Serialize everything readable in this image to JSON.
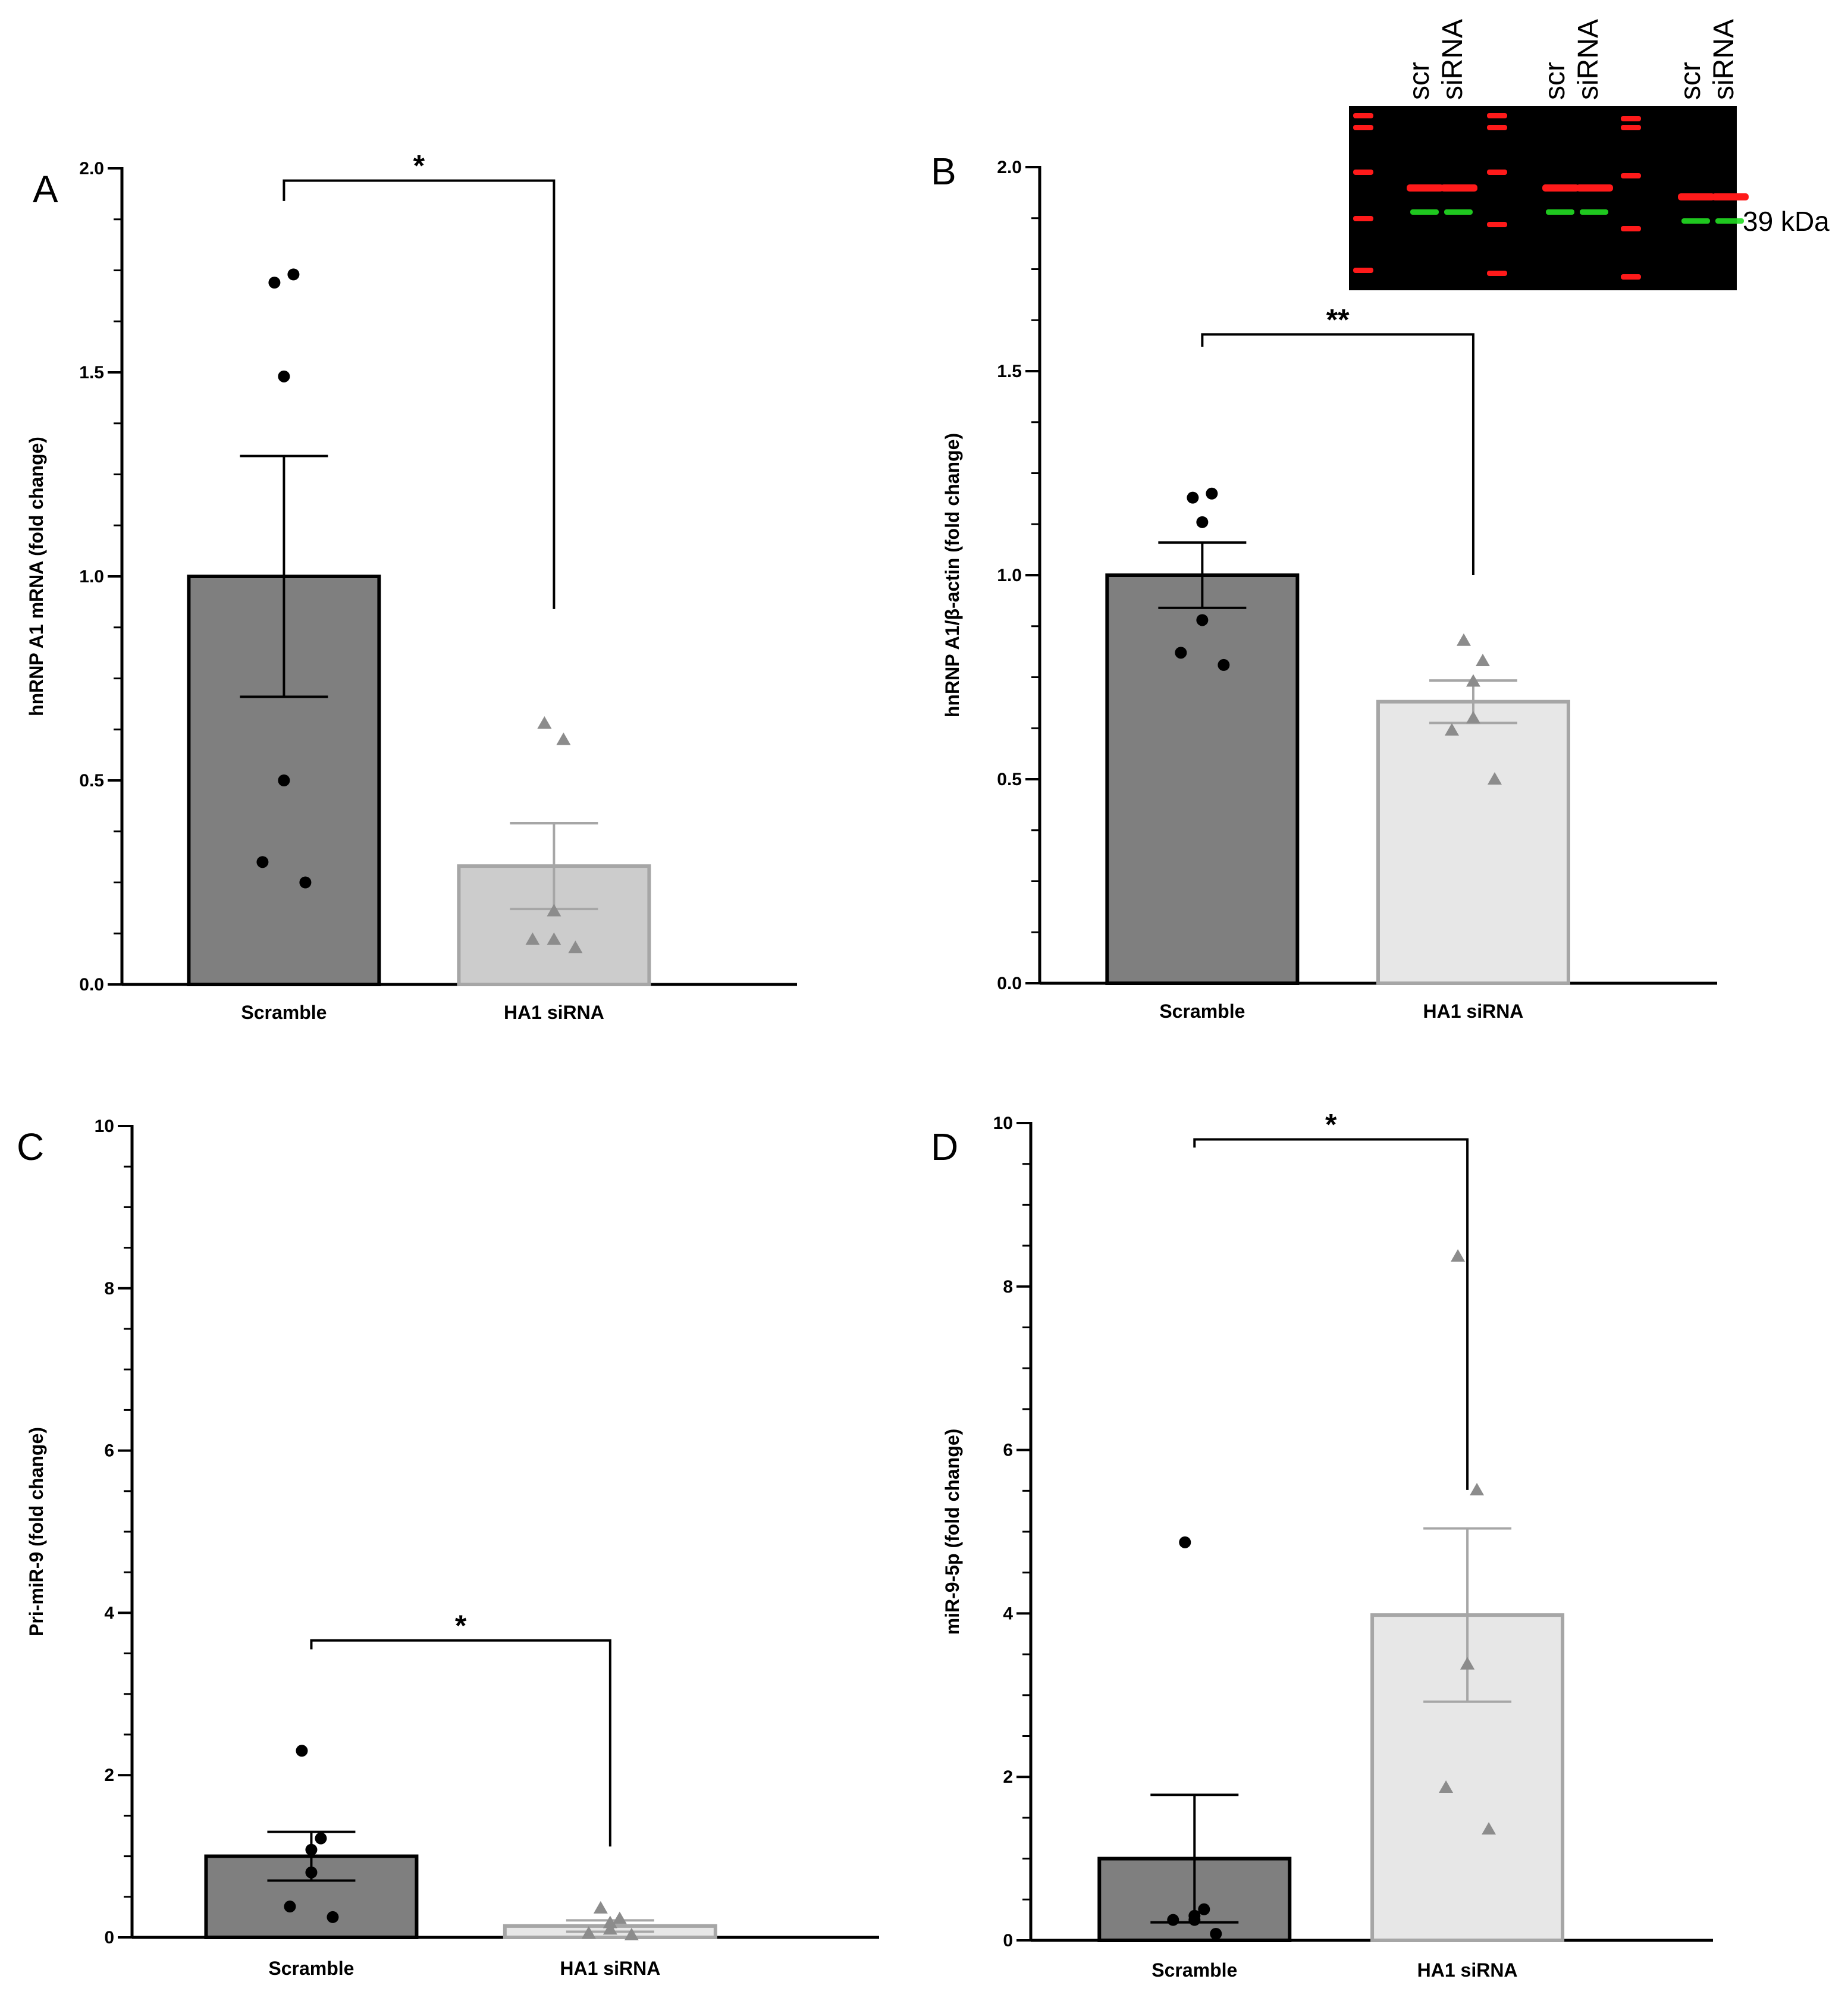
{
  "colors": {
    "scramble_fill": "#7f7f7f",
    "scramble_stroke": "#000000",
    "sirna_fill_A": "#cccccc",
    "sirna_fill": "#e7e7e7",
    "sirna_stroke": "#a6a6a6",
    "scramble_points": "#000000",
    "sirna_points": "#8c8c8c",
    "blot_bg": "#000000",
    "blot_red": "#ff1a1a",
    "blot_green": "#22dd22"
  },
  "blot": {
    "lane_groups": [
      {
        "scr": "scr",
        "sirna": "siRNA"
      },
      {
        "scr": "scr",
        "sirna": "siRNA"
      },
      {
        "scr": "scr",
        "sirna": "siRNA"
      }
    ],
    "marker_label": "39 kDa"
  },
  "chart_data": [
    {
      "panel": "A",
      "type": "bar",
      "ylabel": "hnRNP A1 mRNA (fold change)",
      "ylim": [
        0,
        2.0
      ],
      "yticks": [
        0,
        0.5,
        1.0,
        1.5,
        2.0
      ],
      "ytick_labels": [
        "0.0",
        "0.5",
        "1.0",
        "1.5",
        "2.0"
      ],
      "categories": [
        "Scramble",
        "HA1 siRNA"
      ],
      "values": [
        1.0,
        0.29
      ],
      "sem": [
        0.295,
        0.105
      ],
      "points": [
        [
          1.72,
          1.74,
          1.49,
          0.5,
          0.3,
          0.25
        ],
        [
          0.64,
          0.6,
          0.18,
          0.11,
          0.11,
          0.09
        ]
      ],
      "significance": {
        "label": "*",
        "bracket_y": 1.97,
        "left_drop_to": 1.92,
        "right_drop_to": 0.92
      }
    },
    {
      "panel": "B",
      "type": "bar",
      "ylabel": "hnRNP A1/β-actin (fold change)",
      "ylim": [
        0,
        2.0
      ],
      "yticks": [
        0,
        0.5,
        1.0,
        1.5,
        2.0
      ],
      "ytick_labels": [
        "0.0",
        "0.5",
        "1.0",
        "1.5",
        "2.0"
      ],
      "categories": [
        "Scramble",
        "HA1 siRNA"
      ],
      "values": [
        1.0,
        0.69
      ],
      "sem": [
        0.08,
        0.052
      ],
      "points": [
        [
          1.19,
          1.2,
          1.13,
          0.89,
          0.81,
          0.78
        ],
        [
          0.84,
          0.79,
          0.74,
          0.65,
          0.62,
          0.5
        ]
      ],
      "significance": {
        "label": "**",
        "bracket_y": 1.59,
        "left_drop_to": 1.56,
        "right_drop_to": 1.0
      }
    },
    {
      "panel": "C",
      "type": "bar",
      "ylabel": "Pri-miR-9 (fold change)",
      "ylim": [
        0,
        10
      ],
      "yticks": [
        0,
        2,
        4,
        6,
        8,
        10
      ],
      "ytick_labels": [
        "0",
        "2",
        "4",
        "6",
        "8",
        "10"
      ],
      "categories": [
        "Scramble",
        "HA1 siRNA"
      ],
      "values": [
        1.0,
        0.14
      ],
      "sem": [
        0.3,
        0.07
      ],
      "points": [
        [
          2.3,
          1.22,
          1.08,
          0.8,
          0.38,
          0.25
        ],
        [
          0.36,
          0.23,
          0.18,
          0.1,
          0.05,
          0.03
        ]
      ],
      "significance": {
        "label": "*",
        "bracket_y": 3.66,
        "left_drop_to": 3.55,
        "right_drop_to": 1.12
      }
    },
    {
      "panel": "D",
      "type": "bar",
      "ylabel": "miR-9-5p (fold change)",
      "ylim": [
        0,
        10
      ],
      "yticks": [
        0,
        2,
        4,
        6,
        8,
        10
      ],
      "ytick_labels": [
        "0",
        "2",
        "4",
        "6",
        "8",
        "10"
      ],
      "categories": [
        "Scramble",
        "HA1 siRNA"
      ],
      "values": [
        1.0,
        3.98
      ],
      "sem": [
        0.78,
        1.06
      ],
      "points": [
        [
          4.87,
          0.38,
          0.3,
          0.25,
          0.25,
          0.08
        ],
        [
          8.37,
          5.51,
          3.38,
          3.38,
          1.87,
          1.36
        ]
      ],
      "significance": {
        "label": "*",
        "bracket_y": 9.8,
        "left_drop_to": 9.7,
        "right_drop_to": 5.51
      }
    }
  ]
}
